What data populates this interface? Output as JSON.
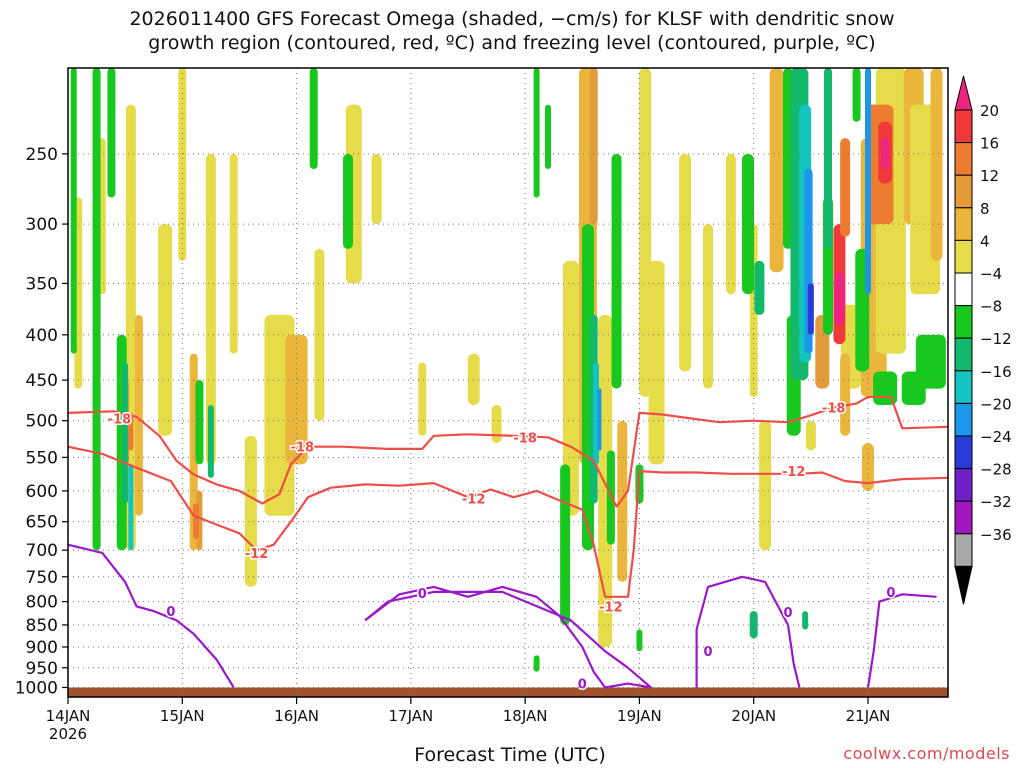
{
  "title_line1": "2026011400 GFS Forecast Omega (shaded, −cm/s) for KLSF with dendritic snow",
  "title_line2": "growth region (contoured, red, ºC) and freezing level (contoured, purple, ºC)",
  "xlabel": "Forecast Time (UTC)",
  "credit": "coolwx.com/models",
  "chart_data": {
    "type": "heatmap",
    "x_axis": {
      "tick_labels": [
        "14JAN",
        "15JAN",
        "16JAN",
        "17JAN",
        "18JAN",
        "19JAN",
        "20JAN",
        "21JAN"
      ],
      "year_label": "2026",
      "range_days": [
        0,
        7.7
      ]
    },
    "y_axis": {
      "tick_labels": [
        "250",
        "300",
        "350",
        "400",
        "450",
        "500",
        "550",
        "600",
        "650",
        "700",
        "750",
        "800",
        "850",
        "900",
        "950",
        "1000"
      ],
      "values": [
        250,
        300,
        350,
        400,
        450,
        500,
        550,
        600,
        650,
        700,
        750,
        800,
        850,
        900,
        950,
        1000
      ],
      "range": [
        200,
        1025
      ],
      "scale": "log",
      "inverted": true
    },
    "grid": true,
    "colorbar": {
      "placement": "right",
      "tick_labels": [
        "20",
        "16",
        "12",
        "8",
        "4",
        "−4",
        "−8",
        "−12",
        "−16",
        "−20",
        "−24",
        "−28",
        "−32",
        "−36"
      ],
      "levels": [
        {
          "range": "above 20",
          "color": "#ee2480"
        },
        {
          "range": "16 to 20",
          "color": "#ef3a3a"
        },
        {
          "range": "12 to 16",
          "color": "#ee7c30"
        },
        {
          "range": "8 to 12",
          "color": "#e39c3a"
        },
        {
          "range": "4 to 8",
          "color": "#eab63c"
        },
        {
          "range": "0 to 4",
          "color": "#e6dc4a"
        },
        {
          "range": "-4 to 4",
          "color": "#ffffff"
        },
        {
          "range": "-8 to -4",
          "color": "#18c81e"
        },
        {
          "range": "-12 to -8",
          "color": "#12b96c"
        },
        {
          "range": "-16 to -12",
          "color": "#14c4c0"
        },
        {
          "range": "-20 to -16",
          "color": "#1a96ea"
        },
        {
          "range": "-24 to -20",
          "color": "#2a3cd8"
        },
        {
          "range": "-28 to -24",
          "color": "#7020c8"
        },
        {
          "range": "-32 to -28",
          "color": "#a018c0"
        },
        {
          "range": "-36 to -32",
          "color": "#a8a8a8"
        },
        {
          "range": "below -36",
          "color": "#000000"
        }
      ]
    },
    "ground_color": "#a0522d",
    "contours": [
      {
        "name": "-18",
        "color": "#ef4d4a",
        "labels": [
          {
            "text": "-18",
            "x": 0.45,
            "p": 497
          },
          {
            "text": "-18",
            "x": 2.05,
            "p": 535
          },
          {
            "text": "-18",
            "x": 4.0,
            "p": 522
          },
          {
            "text": "-18",
            "x": 6.7,
            "p": 483
          }
        ],
        "points": [
          [
            0,
            490
          ],
          [
            0.4,
            488
          ],
          [
            0.6,
            495
          ],
          [
            0.8,
            520
          ],
          [
            0.95,
            555
          ],
          [
            1.1,
            575
          ],
          [
            1.3,
            590
          ],
          [
            1.5,
            600
          ],
          [
            1.7,
            620
          ],
          [
            1.85,
            605
          ],
          [
            1.95,
            560
          ],
          [
            2.1,
            535
          ],
          [
            2.4,
            535
          ],
          [
            2.8,
            538
          ],
          [
            3.1,
            538
          ],
          [
            3.2,
            520
          ],
          [
            3.5,
            518
          ],
          [
            3.9,
            520
          ],
          [
            4.2,
            522
          ],
          [
            4.4,
            535
          ],
          [
            4.6,
            555
          ],
          [
            4.8,
            625
          ],
          [
            4.9,
            600
          ],
          [
            5.0,
            490
          ],
          [
            5.2,
            492
          ],
          [
            5.5,
            498
          ],
          [
            5.7,
            502
          ],
          [
            6.0,
            500
          ],
          [
            6.3,
            502
          ],
          [
            6.5,
            493
          ],
          [
            6.7,
            483
          ],
          [
            6.9,
            478
          ],
          [
            7.0,
            470
          ],
          [
            7.2,
            470
          ],
          [
            7.3,
            510
          ],
          [
            7.7,
            508
          ]
        ]
      },
      {
        "name": "-12",
        "color": "#ef4d4a",
        "labels": [
          {
            "text": "-12",
            "x": 1.65,
            "p": 705
          },
          {
            "text": "-12",
            "x": 3.55,
            "p": 612
          },
          {
            "text": "-12",
            "x": 4.75,
            "p": 810
          },
          {
            "text": "-12",
            "x": 6.35,
            "p": 570
          }
        ],
        "points": [
          [
            0,
            535
          ],
          [
            0.3,
            545
          ],
          [
            0.6,
            565
          ],
          [
            0.9,
            585
          ],
          [
            1.1,
            640
          ],
          [
            1.3,
            655
          ],
          [
            1.5,
            670
          ],
          [
            1.65,
            700
          ],
          [
            1.8,
            690
          ],
          [
            1.95,
            650
          ],
          [
            2.1,
            610
          ],
          [
            2.3,
            595
          ],
          [
            2.6,
            590
          ],
          [
            2.9,
            592
          ],
          [
            3.2,
            588
          ],
          [
            3.5,
            610
          ],
          [
            3.7,
            598
          ],
          [
            3.9,
            610
          ],
          [
            4.1,
            600
          ],
          [
            4.3,
            615
          ],
          [
            4.5,
            630
          ],
          [
            4.6,
            690
          ],
          [
            4.7,
            790
          ],
          [
            4.9,
            790
          ],
          [
            4.95,
            700
          ],
          [
            5.0,
            570
          ],
          [
            5.2,
            572
          ],
          [
            5.5,
            572
          ],
          [
            5.8,
            574
          ],
          [
            6.2,
            574
          ],
          [
            6.4,
            574
          ],
          [
            6.6,
            572
          ],
          [
            6.8,
            585
          ],
          [
            7.0,
            588
          ],
          [
            7.3,
            582
          ],
          [
            7.7,
            580
          ]
        ]
      },
      {
        "name": "0",
        "color": "#9b17cc",
        "labels": [
          {
            "text": "0",
            "x": 0.9,
            "p": 820
          },
          {
            "text": "0",
            "x": 3.1,
            "p": 782
          },
          {
            "text": "0",
            "x": 4.5,
            "p": 990
          },
          {
            "text": "0",
            "x": 5.6,
            "p": 910
          },
          {
            "text": "0",
            "x": 6.3,
            "p": 822
          },
          {
            "text": "0",
            "x": 7.2,
            "p": 780
          }
        ],
        "points": [
          [
            0,
            690
          ],
          [
            0.3,
            705
          ],
          [
            0.5,
            760
          ],
          [
            0.6,
            810
          ],
          [
            0.75,
            820
          ],
          [
            0.95,
            840
          ],
          [
            1.1,
            870
          ],
          [
            1.3,
            930
          ],
          [
            1.45,
            1000
          ]
        ],
        "closed_loops": [
          [
            [
              2.6,
              840
            ],
            [
              2.9,
              785
            ],
            [
              3.2,
              770
            ],
            [
              3.5,
              790
            ],
            [
              3.8,
              770
            ],
            [
              4.1,
              790
            ],
            [
              4.3,
              830
            ],
            [
              4.5,
              900
            ],
            [
              4.6,
              960
            ],
            [
              4.7,
              1000
            ],
            [
              4.9,
              990
            ],
            [
              5.1,
              1000
            ],
            [
              4.9,
              950
            ],
            [
              4.7,
              910
            ],
            [
              4.4,
              840
            ],
            [
              3.8,
              780
            ],
            [
              3.2,
              780
            ],
            [
              2.8,
              800
            ],
            [
              2.6,
              840
            ]
          ],
          [
            [
              5.5,
              1000
            ],
            [
              5.5,
              860
            ],
            [
              5.6,
              770
            ],
            [
              5.9,
              750
            ],
            [
              6.1,
              760
            ],
            [
              6.3,
              850
            ],
            [
              6.35,
              940
            ],
            [
              6.4,
              1000
            ]
          ],
          [
            [
              7.0,
              1000
            ],
            [
              7.05,
              910
            ],
            [
              7.1,
              800
            ],
            [
              7.3,
              785
            ],
            [
              7.6,
              790
            ]
          ]
        ]
      }
    ]
  }
}
